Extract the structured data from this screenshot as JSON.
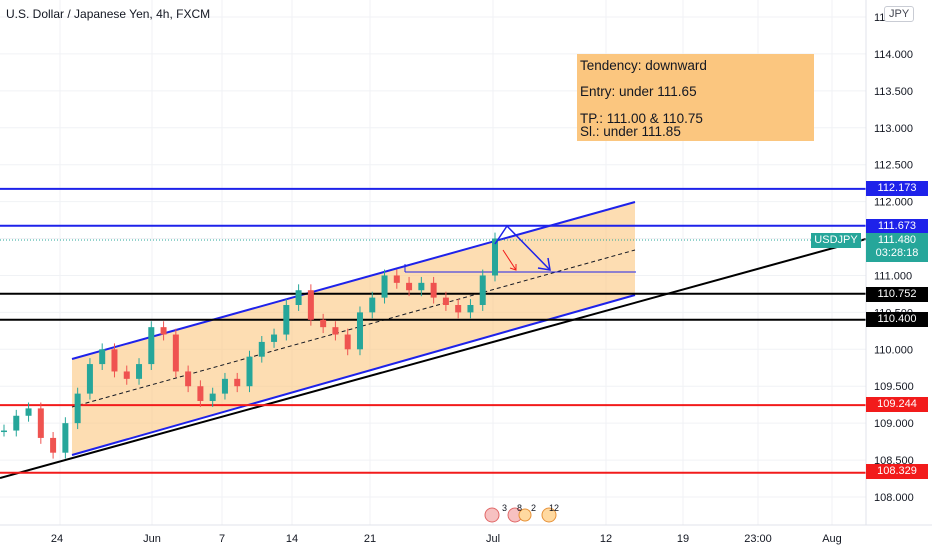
{
  "header": {
    "title": "U.S. Dollar / Japanese Yen, 4h, FXCM",
    "currency": "JPY"
  },
  "note": {
    "line1": "Tendency: downward",
    "line2": "Entry: under 111.65",
    "line3": "TP.: 111.00 & 110.75",
    "line4": "Sl.: under 111.85"
  },
  "ticker": {
    "symbol": "USDJPY",
    "price": "111.480",
    "countdown": "03:28:18"
  },
  "price_labels": [
    {
      "value": "112.173",
      "color": "#1e22ea"
    },
    {
      "value": "111.673",
      "color": "#1e22ea"
    },
    {
      "value": "110.752",
      "color": "#000000"
    },
    {
      "value": "110.400",
      "color": "#000000"
    },
    {
      "value": "109.244",
      "color": "#f21b1b"
    },
    {
      "value": "108.329",
      "color": "#f21b1b"
    }
  ],
  "events": [
    "3",
    "8",
    "2",
    "12"
  ],
  "chart_data": {
    "type": "line",
    "title": "U.S. Dollar / Japanese Yen, 4h, FXCM",
    "y_ticks": [
      "114.500",
      "114.000",
      "113.500",
      "113.000",
      "112.500",
      "112.000",
      "111.500",
      "111.000",
      "110.500",
      "110.000",
      "109.500",
      "109.000",
      "108.500",
      "108.000"
    ],
    "x_ticks": [
      "24",
      "Jun",
      "7",
      "14",
      "21",
      "Jul",
      "12",
      "19",
      "23:00",
      "Aug"
    ],
    "ylim": [
      107.6,
      114.7
    ],
    "horizontal_levels": [
      112.173,
      111.673,
      110.752,
      110.4,
      109.244,
      108.329
    ],
    "series": [
      {
        "values": [
          108.9,
          109.1,
          109.2,
          108.8,
          108.6,
          109.0,
          109.4,
          109.8,
          110.0,
          109.7,
          109.6,
          109.8,
          110.3,
          110.2,
          109.7,
          109.5,
          109.3,
          109.4,
          109.6,
          109.5,
          109.9,
          110.1,
          110.2,
          110.6,
          110.8,
          110.4,
          110.3,
          110.2,
          110.0,
          110.5,
          110.7,
          111.0,
          110.9,
          110.8,
          110.9,
          110.7,
          110.6,
          110.5,
          110.6,
          111.0,
          111.5
        ]
      }
    ]
  }
}
